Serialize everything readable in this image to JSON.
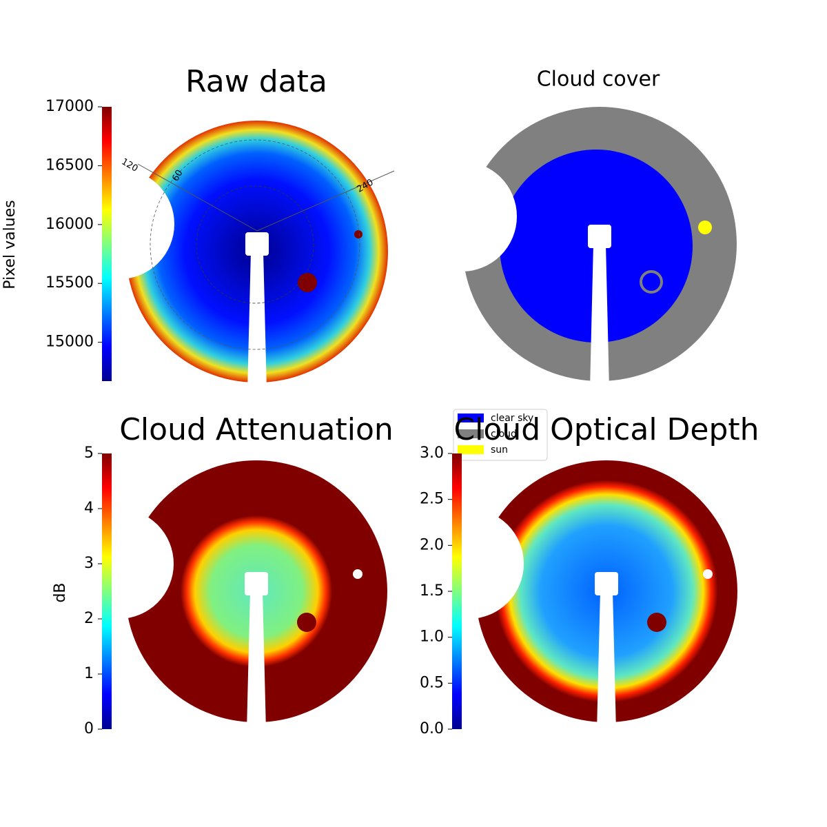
{
  "chart_data": [
    {
      "type": "image",
      "title": "Raw data",
      "colorbar_label": "Pixel values",
      "colormap": "jet",
      "clim": [
        14670,
        17000
      ],
      "cticks": [
        15000,
        15500,
        16000,
        16500,
        17000
      ],
      "annotations": [
        "120",
        "60",
        "240"
      ]
    },
    {
      "type": "classification",
      "title": "Cloud cover",
      "legend": [
        {
          "name": "clear sky",
          "color": "#0000ff"
        },
        {
          "name": "cloud",
          "color": "#808080"
        },
        {
          "name": "sun",
          "color": "#ffff00"
        }
      ]
    },
    {
      "type": "image",
      "title": "Cloud Attenuation",
      "colorbar_label": "dB",
      "colormap": "jet",
      "clim": [
        0,
        5
      ],
      "cticks": [
        0,
        1,
        2,
        3,
        4,
        5
      ]
    },
    {
      "type": "image",
      "title": "Cloud Optical Depth",
      "colormap": "jet",
      "clim": [
        0,
        3
      ],
      "cticks": [
        {
          "value": 0,
          "label": "0.0"
        },
        {
          "value": 0.5,
          "label": "0.5"
        },
        {
          "value": 1,
          "label": "1.0"
        },
        {
          "value": 1.5,
          "label": "1.5"
        },
        {
          "value": 2,
          "label": "2.0"
        },
        {
          "value": 2.5,
          "label": "2.5"
        },
        {
          "value": 3,
          "label": "3.0"
        }
      ]
    }
  ]
}
